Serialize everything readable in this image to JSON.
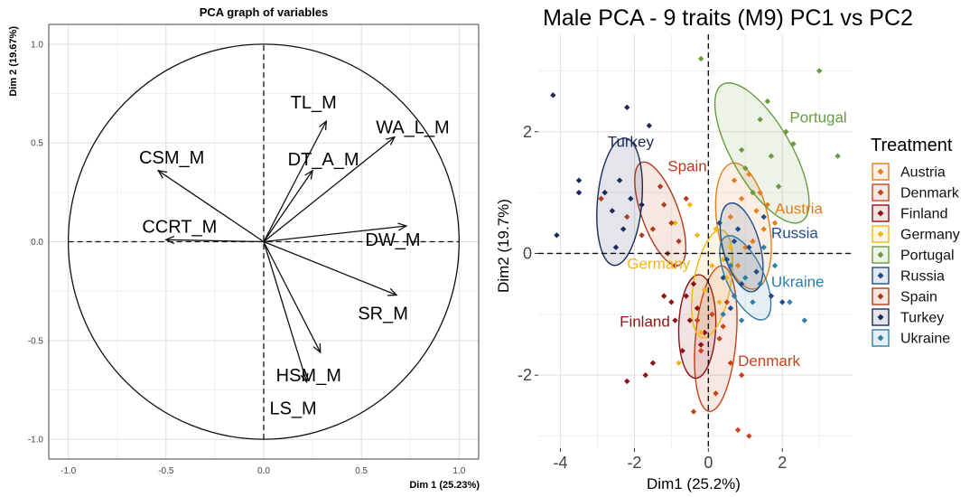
{
  "chart_data": [
    {
      "type": "scatter",
      "subtype": "pca-correlation-circle",
      "title": "PCA graph of variables",
      "xlabel": "Dim 1 (25.23%)",
      "ylabel": "Dim 2 (19.67%)",
      "xlim": [
        -1.1,
        1.1
      ],
      "ylim": [
        -1.1,
        1.1
      ],
      "x_ticks": [
        -1.0,
        -0.5,
        0.0,
        0.5,
        1.0
      ],
      "y_ticks": [
        -1.0,
        -0.5,
        0.0,
        0.5,
        1.0
      ],
      "x_tick_labels": [
        "-1.0",
        "-0.5",
        "0.0",
        "0.5",
        "1.0"
      ],
      "y_tick_labels": [
        "-1.0",
        "-0.5",
        "0.0",
        "0.5",
        "1.0"
      ],
      "grid": true,
      "arrows": [
        {
          "label": "TL_M",
          "x": 0.32,
          "y": 0.61
        },
        {
          "label": "DT_A_M",
          "x": 0.25,
          "y": 0.36
        },
        {
          "label": "WA_L_M",
          "x": 0.67,
          "y": 0.53
        },
        {
          "label": "CSM_M",
          "x": -0.54,
          "y": 0.36
        },
        {
          "label": "CCRT_M",
          "x": -0.5,
          "y": 0.01
        },
        {
          "label": "DW_M",
          "x": 0.73,
          "y": 0.08
        },
        {
          "label": "SR_M",
          "x": 0.68,
          "y": -0.27
        },
        {
          "label": "HSM_M",
          "x": 0.29,
          "y": -0.56
        },
        {
          "label": "LS_M",
          "x": 0.22,
          "y": -0.71
        }
      ]
    },
    {
      "type": "scatter",
      "title": "Male PCA - 9 traits (M9) PC1 vs PC2",
      "xlabel": "Dim1 (25.2%)",
      "ylabel": "Dim2 (19.7%)",
      "xlim": [
        -4.6,
        3.9
      ],
      "ylim": [
        -3.2,
        3.6
      ],
      "x_ticks": [
        -4,
        -2,
        0,
        2
      ],
      "y_ticks": [
        -2,
        0,
        2
      ],
      "x_tick_labels": [
        "-4",
        "-2",
        "0",
        "2"
      ],
      "y_tick_labels": [
        "-2",
        "0",
        "2"
      ],
      "grid": true,
      "legend": {
        "title": "Treatment",
        "position": "right"
      },
      "series": [
        {
          "name": "Austria",
          "color": "#E37E1E",
          "points": [
            [
              1.1,
              1.3
            ],
            [
              0.9,
              0.9
            ],
            [
              1.4,
              1.0
            ],
            [
              0.6,
              0.6
            ],
            [
              1.5,
              0.4
            ],
            [
              1.2,
              0.2
            ],
            [
              0.8,
              -0.2
            ],
            [
              1.3,
              0.7
            ],
            [
              1.8,
              0.5
            ],
            [
              1.0,
              0.1
            ],
            [
              0.7,
              1.2
            ],
            [
              1.6,
              0.8
            ]
          ],
          "ellipse": {
            "cx": 0.95,
            "cy": 0.45,
            "rx": 0.7,
            "ry": 1.05,
            "angle": 80
          }
        },
        {
          "name": "Denmark",
          "color": "#C8431A",
          "points": [
            [
              0.3,
              -1.4
            ],
            [
              0.6,
              -1.8
            ],
            [
              0.1,
              -1.0
            ],
            [
              -0.2,
              -1.6
            ],
            [
              0.5,
              -0.8
            ],
            [
              0.9,
              -2.0
            ],
            [
              0.2,
              -2.3
            ],
            [
              -0.1,
              -0.6
            ],
            [
              0.4,
              -1.2
            ],
            [
              -0.4,
              -2.6
            ],
            [
              0.8,
              -2.9
            ],
            [
              1.1,
              -3.0
            ],
            [
              -0.3,
              -1.1
            ]
          ],
          "ellipse": {
            "cx": 0.2,
            "cy": -1.4,
            "rx": 0.55,
            "ry": 1.2,
            "angle": 95
          }
        },
        {
          "name": "Finland",
          "color": "#8E1215",
          "points": [
            [
              -0.5,
              -1.1
            ],
            [
              -0.2,
              -1.5
            ],
            [
              -0.6,
              -0.7
            ],
            [
              -0.3,
              -0.9
            ],
            [
              -1.0,
              -0.8
            ],
            [
              -0.1,
              -1.3
            ],
            [
              -0.7,
              -1.6
            ],
            [
              -1.7,
              -2.0
            ],
            [
              -2.2,
              -2.1
            ],
            [
              -1.5,
              -1.8
            ],
            [
              -0.4,
              -0.5
            ],
            [
              -1.2,
              -0.7
            ],
            [
              -0.9,
              -1.1
            ]
          ],
          "ellipse": {
            "cx": -0.3,
            "cy": -1.2,
            "rx": 0.5,
            "ry": 0.85,
            "angle": 92
          }
        },
        {
          "name": "Germany",
          "color": "#F2B619",
          "points": [
            [
              0.1,
              -0.2
            ],
            [
              -0.3,
              0.3
            ],
            [
              0.3,
              -0.8
            ],
            [
              0.5,
              -0.4
            ],
            [
              -0.2,
              -1.3
            ],
            [
              -0.8,
              -1.8
            ],
            [
              0.4,
              -0.1
            ],
            [
              -0.1,
              -0.6
            ],
            [
              0.6,
              0.1
            ],
            [
              -0.5,
              0.8
            ],
            [
              0.2,
              0.4
            ],
            [
              -0.9,
              0.5
            ]
          ],
          "ellipse": {
            "cx": 0.1,
            "cy": -0.5,
            "rx": 0.5,
            "ry": 0.9,
            "angle": 100
          }
        },
        {
          "name": "Portugal",
          "color": "#6A9B3E",
          "points": [
            [
              1.7,
              1.6
            ],
            [
              2.1,
              2.0
            ],
            [
              1.4,
              2.2
            ],
            [
              1.9,
              1.1
            ],
            [
              3.0,
              3.0
            ],
            [
              3.5,
              1.6
            ],
            [
              1.6,
              2.5
            ],
            [
              1.2,
              1.0
            ],
            [
              2.3,
              1.8
            ],
            [
              1.0,
              1.4
            ],
            [
              -0.2,
              3.2
            ],
            [
              0.9,
              1.7
            ]
          ],
          "ellipse": {
            "cx": 1.45,
            "cy": 1.65,
            "rx": 0.8,
            "ry": 1.3,
            "angle": 60
          }
        },
        {
          "name": "Russia",
          "color": "#1D4E89",
          "points": [
            [
              0.8,
              0.4
            ],
            [
              1.1,
              0.1
            ],
            [
              0.5,
              -0.1
            ],
            [
              1.3,
              -0.3
            ],
            [
              0.9,
              -0.5
            ],
            [
              0.3,
              0.5
            ],
            [
              1.5,
              0.6
            ],
            [
              0.6,
              -0.9
            ],
            [
              0.4,
              -0.4
            ],
            [
              1.7,
              -0.7
            ],
            [
              2.0,
              -0.8
            ],
            [
              0.7,
              0.2
            ]
          ],
          "ellipse": {
            "cx": 0.9,
            "cy": 0.1,
            "rx": 0.5,
            "ry": 0.75,
            "angle": 75
          }
        },
        {
          "name": "Spain",
          "color": "#B23A1B",
          "points": [
            [
              -1.2,
              0.8
            ],
            [
              -1.0,
              0.5
            ],
            [
              -1.5,
              0.4
            ],
            [
              -0.8,
              0.2
            ],
            [
              -1.1,
              0.0
            ],
            [
              -0.6,
              0.9
            ],
            [
              -2.2,
              0.6
            ],
            [
              -1.8,
              0.3
            ],
            [
              -0.9,
              -0.2
            ],
            [
              -1.3,
              1.1
            ],
            [
              -2.9,
              0.9
            ]
          ],
          "ellipse": {
            "cx": -1.3,
            "cy": 0.65,
            "rx": 0.5,
            "ry": 0.9,
            "angle": 70
          }
        },
        {
          "name": "Turkey",
          "color": "#1B2A5A",
          "points": [
            [
              -2.4,
              1.2
            ],
            [
              -2.6,
              0.7
            ],
            [
              -2.1,
              0.9
            ],
            [
              -2.8,
              1.0
            ],
            [
              -2.3,
              0.4
            ],
            [
              -4.2,
              2.6
            ],
            [
              -2.2,
              2.4
            ],
            [
              -1.6,
              2.1
            ],
            [
              -3.5,
              1.2
            ],
            [
              -3.5,
              1.0
            ],
            [
              -4.1,
              0.3
            ],
            [
              -2.5,
              0.1
            ],
            [
              -1.8,
              0.8
            ]
          ],
          "ellipse": {
            "cx": -2.4,
            "cy": 0.85,
            "rx": 0.6,
            "ry": 1.05,
            "angle": 95
          }
        },
        {
          "name": "Ukraine",
          "color": "#2E7EA8",
          "points": [
            [
              1.0,
              -0.4
            ],
            [
              0.7,
              -0.7
            ],
            [
              1.4,
              -0.5
            ],
            [
              1.2,
              -0.8
            ],
            [
              0.6,
              -0.2
            ],
            [
              1.8,
              -0.2
            ],
            [
              2.2,
              -0.8
            ],
            [
              0.4,
              -1.0
            ],
            [
              0.9,
              -1.1
            ],
            [
              2.6,
              -1.1
            ],
            [
              1.5,
              0.1
            ]
          ],
          "ellipse": {
            "cx": 1.0,
            "cy": -0.4,
            "rx": 0.5,
            "ry": 0.75,
            "angle": 65
          }
        }
      ],
      "group_labels": [
        {
          "text": "Portugal",
          "x": 2.2,
          "y": 2.15,
          "anchor": "start",
          "series": "Portugal"
        },
        {
          "text": "Turkey",
          "x": -2.1,
          "y": 1.75,
          "anchor": "middle",
          "series": "Turkey"
        },
        {
          "text": "Spain",
          "x": -1.1,
          "y": 1.35,
          "anchor": "start",
          "series": "Spain"
        },
        {
          "text": "Austria",
          "x": 1.8,
          "y": 0.65,
          "anchor": "start",
          "series": "Austria"
        },
        {
          "text": "Russia",
          "x": 1.7,
          "y": 0.25,
          "anchor": "start",
          "series": "Russia"
        },
        {
          "text": "Germany",
          "x": -2.2,
          "y": -0.25,
          "anchor": "start",
          "series": "Germany"
        },
        {
          "text": "Ukraine",
          "x": 1.7,
          "y": -0.55,
          "anchor": "start",
          "series": "Ukraine"
        },
        {
          "text": "Finland",
          "x": -2.4,
          "y": -1.2,
          "anchor": "start",
          "series": "Finland"
        },
        {
          "text": "Denmark",
          "x": 0.8,
          "y": -1.85,
          "anchor": "start",
          "series": "Denmark"
        }
      ]
    }
  ]
}
